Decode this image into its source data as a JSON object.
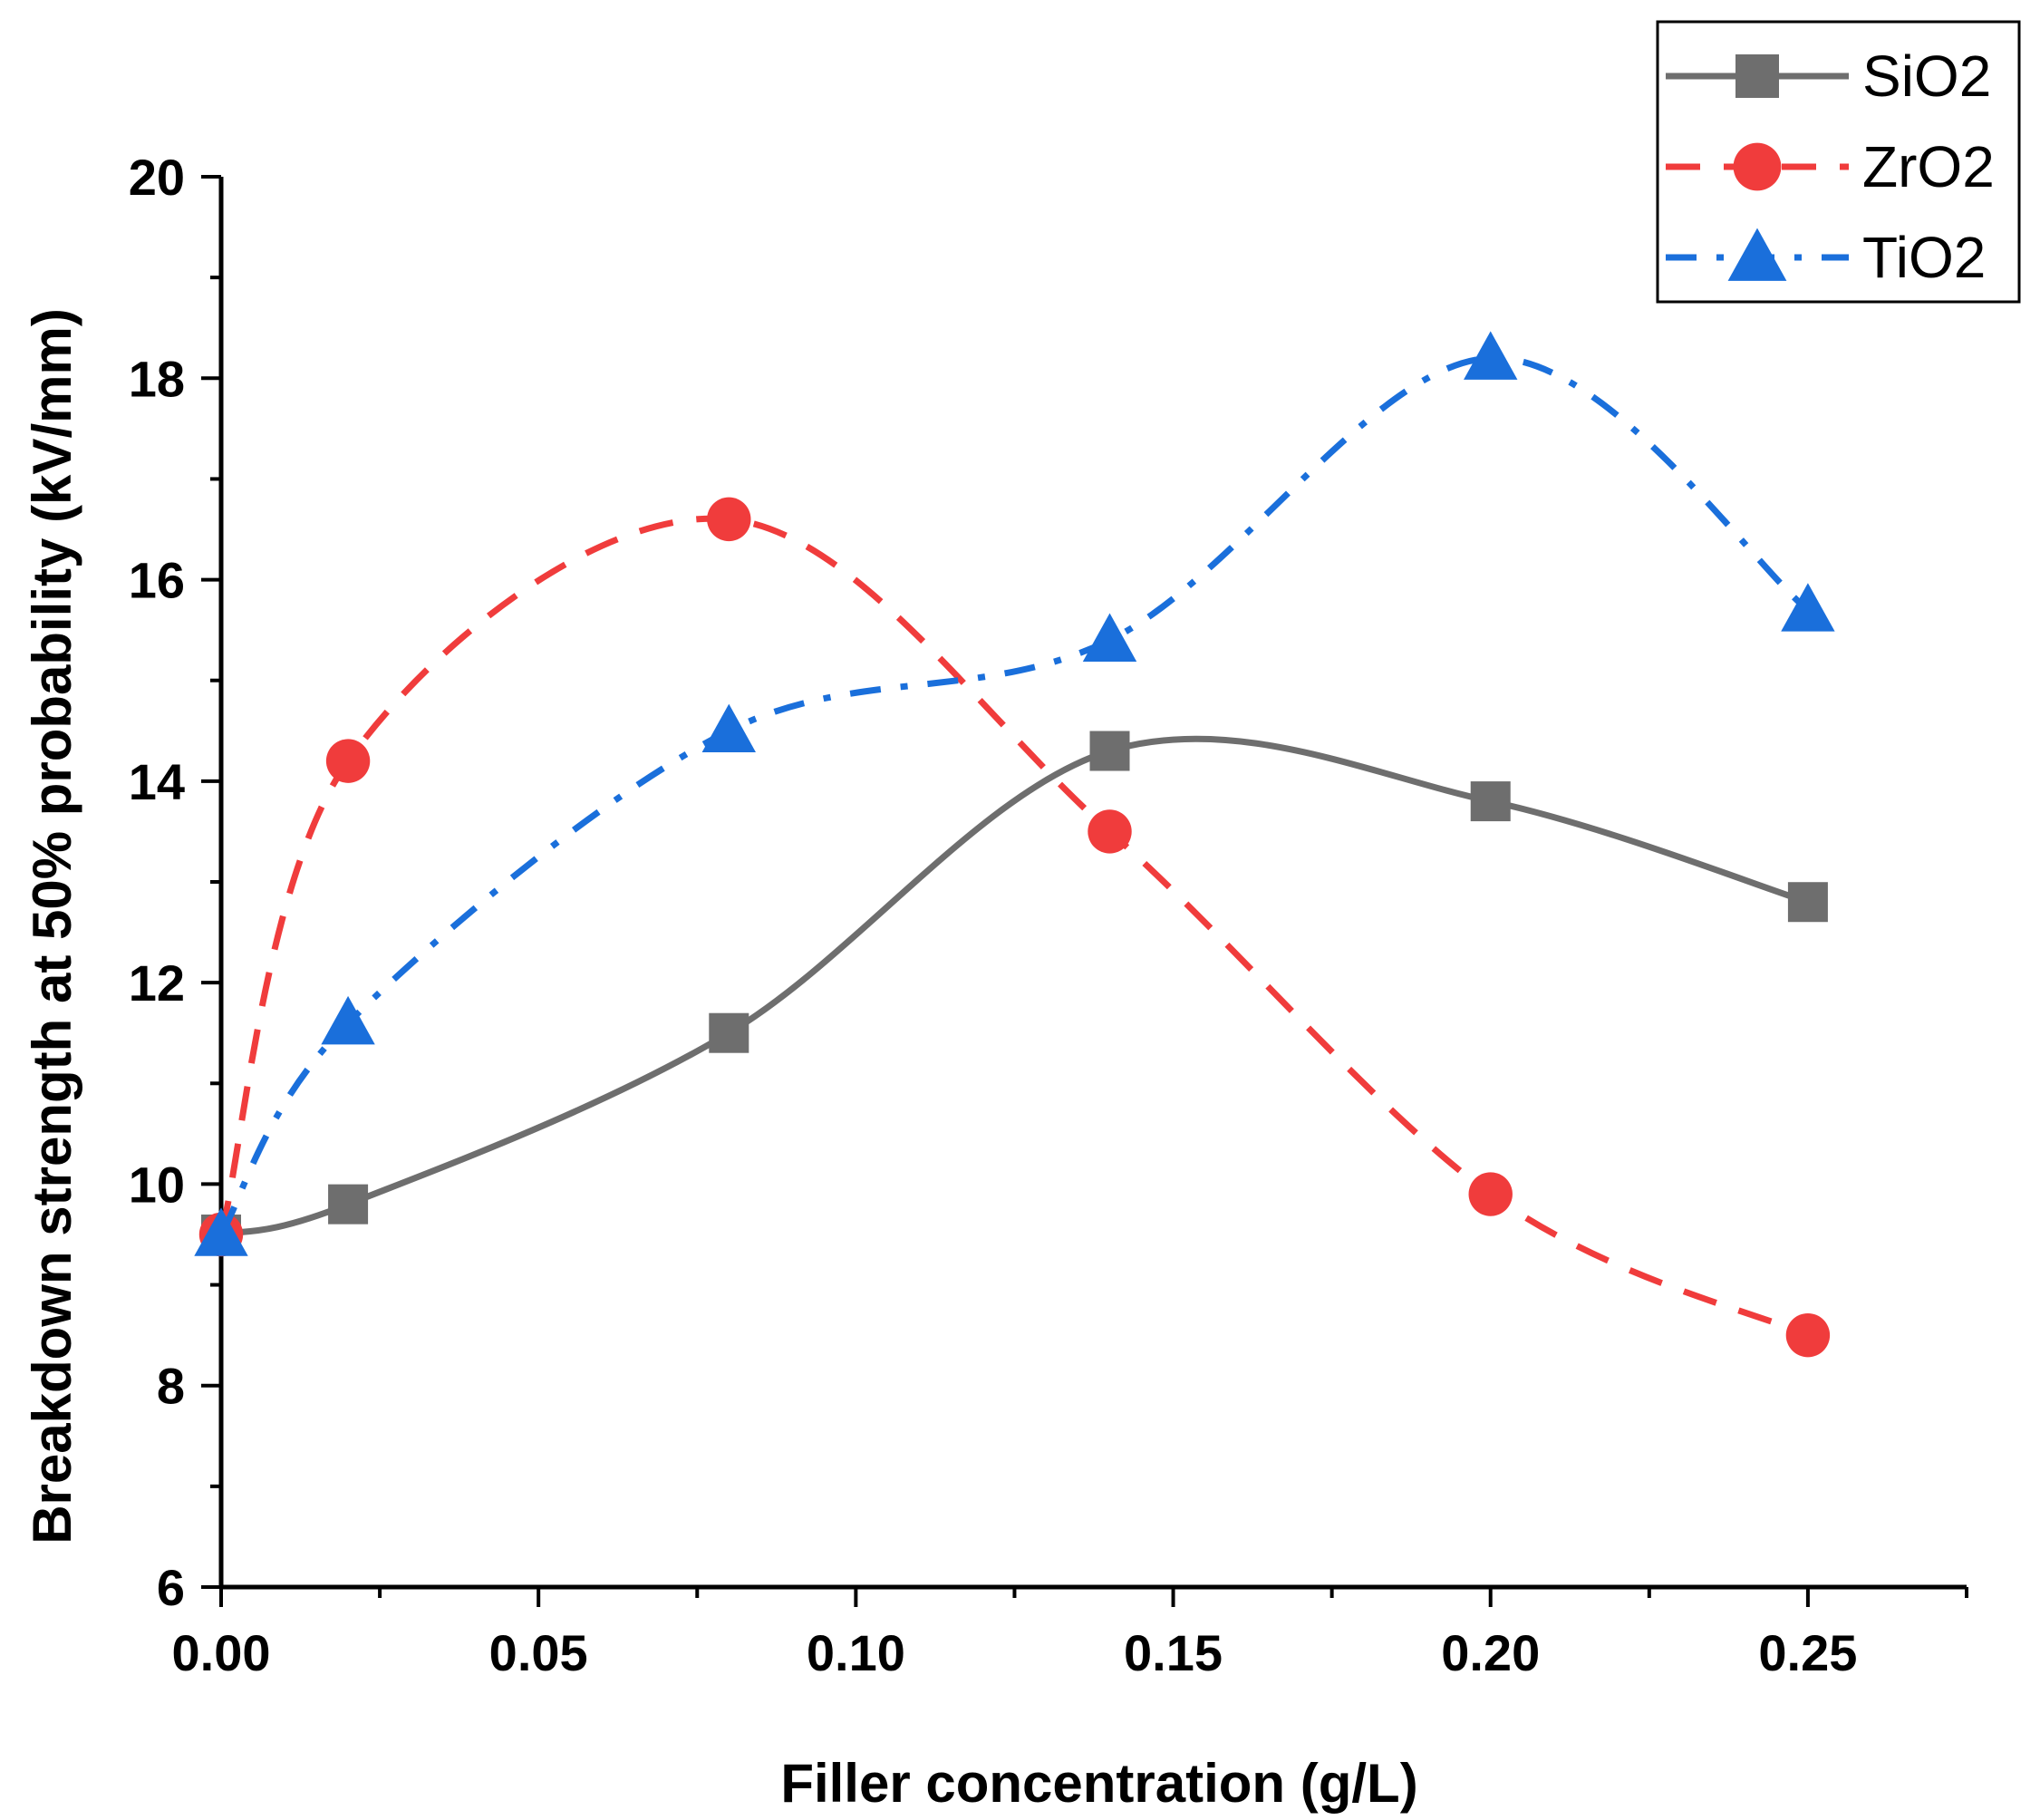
{
  "chart_data": {
    "type": "line",
    "xlabel": "Filler concentration (g/L)",
    "ylabel": "Breakdown strength at 50% probability (kV/mm)",
    "xlim": [
      0,
      0.275
    ],
    "ylim": [
      6,
      20
    ],
    "x_ticks": [
      "0.00",
      "0.05",
      "0.10",
      "0.15",
      "0.20",
      "0.25"
    ],
    "y_ticks": [
      "6",
      "8",
      "10",
      "12",
      "14",
      "16",
      "18",
      "20"
    ],
    "legend_position": "top-right",
    "grid": false,
    "series": [
      {
        "name": "SiO2",
        "color": "#6e6e6e",
        "marker": "square",
        "line_style": "solid",
        "x": [
          0,
          0.02,
          0.08,
          0.14,
          0.2,
          0.25
        ],
        "values": [
          9.5,
          9.8,
          11.5,
          14.3,
          13.8,
          12.8
        ]
      },
      {
        "name": "ZrO2",
        "color": "#f03c3c",
        "marker": "circle",
        "line_style": "dashed",
        "x": [
          0,
          0.02,
          0.08,
          0.14,
          0.2,
          0.25
        ],
        "values": [
          9.5,
          14.2,
          16.6,
          13.5,
          9.9,
          8.5
        ]
      },
      {
        "name": "TiO2",
        "color": "#1a6fdb",
        "marker": "triangle",
        "line_style": "dash-dot",
        "x": [
          0,
          0.02,
          0.08,
          0.14,
          0.2,
          0.25
        ],
        "values": [
          9.5,
          11.6,
          14.5,
          15.4,
          18.2,
          15.7
        ]
      }
    ]
  }
}
